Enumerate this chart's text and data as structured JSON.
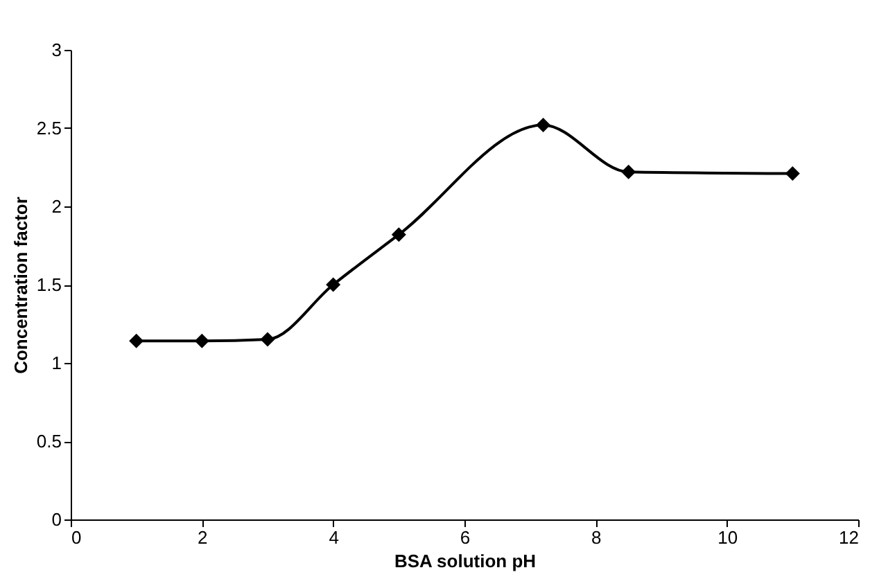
{
  "chart_data": {
    "type": "line",
    "xlabel": "BSA solution pH",
    "ylabel": "Concentration factor",
    "x": [
      1,
      2,
      3,
      4,
      5,
      7.2,
      8.5,
      11
    ],
    "series": [
      {
        "color": "#000000",
        "values": [
          1.14,
          1.14,
          1.15,
          1.5,
          1.82,
          2.52,
          2.22,
          2.21
        ]
      }
    ],
    "xlim": [
      0,
      12
    ],
    "xticks": [
      0,
      2,
      4,
      6,
      8,
      10,
      12
    ],
    "ylim": [
      0,
      3
    ],
    "yticks": [
      0,
      0.5,
      1,
      1.5,
      2,
      2.5,
      3
    ],
    "grid": false,
    "marker": "diamond",
    "line_style": "solid"
  }
}
